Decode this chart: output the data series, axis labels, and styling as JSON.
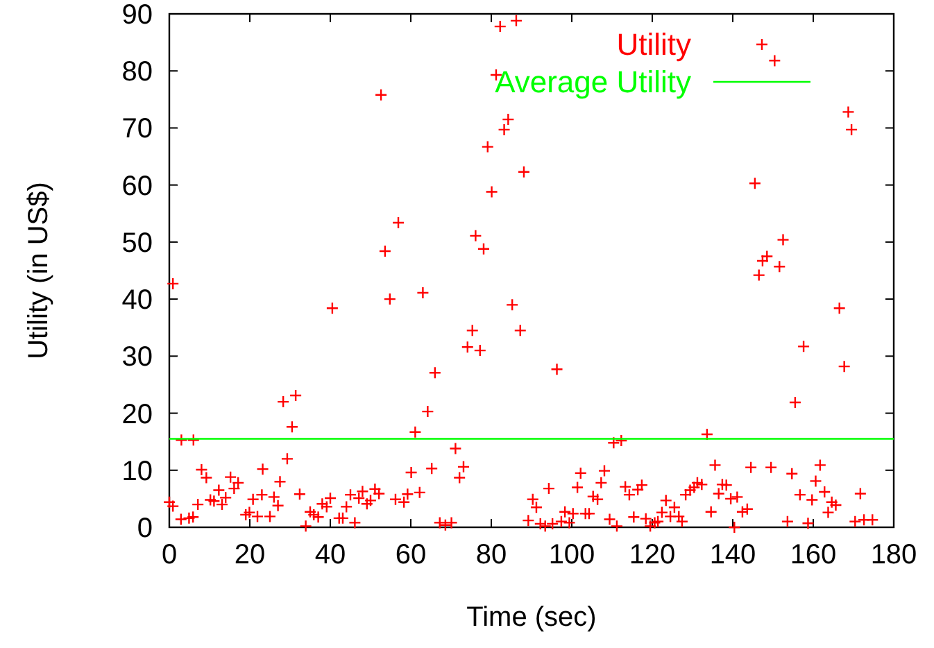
{
  "chart_data": {
    "type": "scatter",
    "xlabel": "Time (sec)",
    "ylabel": "Utility (in US$)",
    "xlim": [
      0,
      180
    ],
    "xticks": [
      0,
      20,
      40,
      60,
      80,
      100,
      120,
      140,
      160,
      180
    ],
    "ylim": [
      0,
      90
    ],
    "yticks": [
      0,
      10,
      20,
      30,
      40,
      50,
      60,
      70,
      80,
      90
    ],
    "grid": false,
    "legend": "top right",
    "series": [
      {
        "name": "Utility",
        "marker": "cross",
        "color": "#ff0000",
        "x": [
          0,
          0.9,
          0.9,
          2.9,
          3,
          4.9,
          5.9,
          6,
          7.1,
          8,
          9.2,
          10.2,
          11.1,
          12.3,
          13.1,
          14,
          15.2,
          16.1,
          17.1,
          19,
          19.9,
          20.8,
          21.9,
          23,
          23.2,
          25,
          26,
          27,
          27.5,
          28.3,
          29.3,
          30.5,
          31.4,
          32.4,
          33.9,
          35,
          35.9,
          37,
          38,
          39.1,
          40,
          40.5,
          42.2,
          43.1,
          44,
          45,
          46.1,
          47.1,
          48,
          49.1,
          50,
          51.1,
          52.1,
          52.6,
          53.6,
          54.8,
          56.2,
          56.9,
          58.3,
          59.2,
          60.1,
          61.1,
          62.2,
          63,
          64.2,
          65.2,
          66,
          67.2,
          68.6,
          70.1,
          71.1,
          72.1,
          73.1,
          74.1,
          75.3,
          76.1,
          77.2,
          78.1,
          79.1,
          80.1,
          81.2,
          82.2,
          83.2,
          84.2,
          85.2,
          86.2,
          87.2,
          88.1,
          89.2,
          90.3,
          91.2,
          92.2,
          93.4,
          94.3,
          95.2,
          96.3,
          97.4,
          98.3,
          99.4,
          100.3,
          101.4,
          102.2,
          103.4,
          104.3,
          105.3,
          106.4,
          107.3,
          108.1,
          109.4,
          110.4,
          111.2,
          112.3,
          113.3,
          114.3,
          115.4,
          116.4,
          117.4,
          118.4,
          119.5,
          120.6,
          121.4,
          122.4,
          123.4,
          124.5,
          125.5,
          126.6,
          127.4,
          128.3,
          129.4,
          130.4,
          131.2,
          132.3,
          133.6,
          134.6,
          135.6,
          136.5,
          137.4,
          138.4,
          139.5,
          140.4,
          141.1,
          142.4,
          143.6,
          144.5,
          145.5,
          146.5,
          147.4,
          148.5,
          149.5,
          150.4,
          151.6,
          152.5,
          153.6,
          154.7,
          155.5,
          156.7,
          157.6,
          158.7,
          159.7,
          160.6,
          161.7,
          162.8,
          163.7,
          164.6,
          165.6,
          166.5,
          167.7,
          168.7,
          169.5,
          170.4,
          171.7,
          172.6,
          174.7
        ],
        "values": [
          4.4,
          3.7,
          42.7,
          1.4,
          15.3,
          1.6,
          1.8,
          15.3,
          4,
          10.1,
          8.7,
          4.8,
          4.6,
          6.5,
          4,
          5.2,
          8.8,
          6.8,
          7.8,
          2.2,
          2.6,
          4.9,
          1.9,
          5.7,
          10.2,
          1.9,
          5.3,
          3.8,
          8,
          22,
          12,
          17.6,
          23.1,
          5.8,
          0.2,
          2.7,
          2.2,
          1.8,
          4.1,
          3.6,
          5.1,
          38.4,
          1.6,
          1.6,
          3.6,
          5.7,
          0.8,
          5.1,
          6.3,
          4.1,
          4.7,
          6.7,
          5.9,
          75.8,
          48.4,
          40,
          4.9,
          53.4,
          4.4,
          5.8,
          9.6,
          16.7,
          6.1,
          41.1,
          20.3,
          10.3,
          27.1,
          0.8,
          0.4,
          0.8,
          13.8,
          8.7,
          10.6,
          31.6,
          34.5,
          51.1,
          31,
          48.8,
          66.7,
          58.8,
          79.3,
          87.8,
          69.7,
          71.5,
          39,
          88.8,
          34.5,
          62.3,
          1.2,
          4.9,
          3.5,
          0.6,
          0.2,
          6.8,
          0.6,
          27.7,
          1,
          2.7,
          0.8,
          2.4,
          7,
          9.5,
          2.4,
          2.4,
          5.4,
          4.9,
          7.8,
          9.9,
          1.4,
          14.8,
          0.2,
          15.2,
          7.1,
          5.7,
          1.8,
          6.6,
          7.4,
          1.5,
          0.2,
          0.8,
          1,
          2.6,
          4.7,
          1.9,
          3.5,
          1.9,
          1,
          5.7,
          6.5,
          7,
          7.8,
          7.5,
          16.3,
          2.7,
          10.9,
          5.9,
          7.5,
          7.4,
          5,
          0,
          5.3,
          2.7,
          3.2,
          10.5,
          60.3,
          44.2,
          46.7,
          47.5,
          10.5,
          81.8,
          45.7,
          50.4,
          1,
          9.4,
          21.9,
          5.7,
          31.7,
          0.7,
          4.8,
          8.1,
          10.9,
          6.2,
          2.6,
          4.4,
          3.9,
          38.4,
          28.2,
          72.8,
          69.7,
          1,
          5.9,
          1.3,
          1.3
        ]
      },
      {
        "name": "Average Utility",
        "type": "line",
        "marker": "none",
        "color": "#00ff00",
        "x": [
          0,
          180
        ],
        "values": [
          15.5,
          15.5
        ]
      }
    ]
  }
}
